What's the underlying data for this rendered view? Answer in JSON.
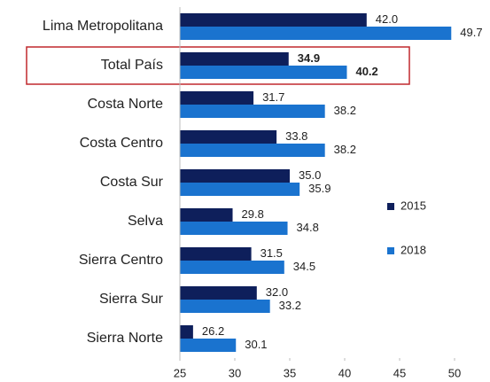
{
  "chart_data": {
    "type": "barh",
    "categories": [
      "Lima Metropolitana",
      "Total País",
      "Costa Norte",
      "Costa Centro",
      "Costa Sur",
      "Selva",
      "Sierra Centro",
      "Sierra Sur",
      "Sierra Norte"
    ],
    "series": [
      {
        "name": "2015",
        "color": "#0e1f5b",
        "values": [
          42.0,
          34.9,
          31.7,
          33.8,
          35.0,
          29.8,
          31.5,
          32.0,
          26.2
        ],
        "value_labels": [
          "42.0",
          "34.9",
          "31.7",
          "33.8",
          "35.0",
          "29.8",
          "31.5",
          "32.0",
          "26.2"
        ]
      },
      {
        "name": "2018",
        "color": "#1a73cf",
        "values": [
          49.7,
          40.2,
          38.2,
          38.2,
          35.9,
          34.8,
          34.5,
          33.2,
          30.1
        ],
        "value_labels": [
          "49.7",
          "40.2",
          "38.2",
          "38.2",
          "35.9",
          "34.8",
          "34.5",
          "33.2",
          "30.1"
        ]
      }
    ],
    "xlim": [
      25,
      50
    ],
    "xticks": [
      25,
      30,
      35,
      40,
      45,
      50
    ],
    "legend": "right"
  }
}
